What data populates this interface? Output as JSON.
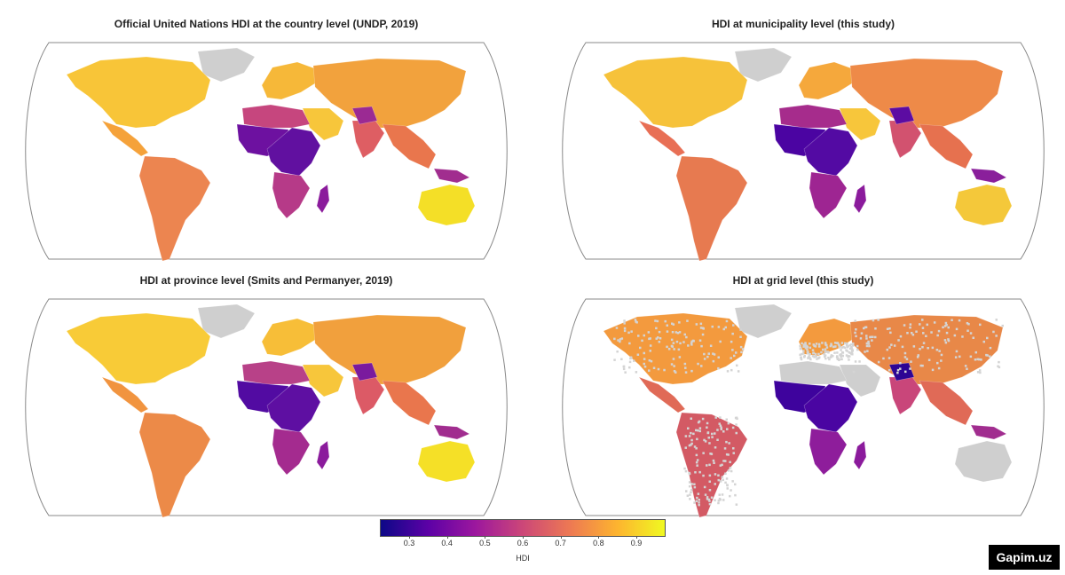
{
  "panels": [
    {
      "title": "Official United Nations HDI at the country level (UNDP, 2019)"
    },
    {
      "title": "HDI at municipality level (this study)"
    },
    {
      "title": "HDI at province level (Smits and Permanyer, 2019)"
    },
    {
      "title": "HDI at grid level (this study)"
    }
  ],
  "legend": {
    "label": "HDI",
    "ticks": [
      "0.3",
      "0.4",
      "0.5",
      "0.6",
      "0.7",
      "0.8",
      "0.9"
    ],
    "tick_values": [
      0.3,
      0.4,
      0.5,
      0.6,
      0.7,
      0.8,
      0.9
    ],
    "range": [
      0.225,
      0.975
    ],
    "colors": [
      "#0d0887",
      "#5c01a6",
      "#9c179e",
      "#cc4778",
      "#ed7953",
      "#fdb42f",
      "#f0f921"
    ]
  },
  "region_colors": {
    "panel1": {
      "north_america": "#f8c538",
      "central_america": "#f5a23a",
      "south_america": "#ec8550",
      "greenland": "#cfcfcf",
      "europe": "#f6b839",
      "russia_asia": "#f2a23d",
      "middle_east": "#f7c63b",
      "africa_north": "#c6467e",
      "africa_west": "#6d11a0",
      "africa_central": "#6110a0",
      "africa_south": "#b63a88",
      "madagascar": "#8b1b9c",
      "india": "#de5e63",
      "south_asia_hotspot": "#9b2a93",
      "se_asia": "#e9764d",
      "australia": "#f4df27",
      "new_guinea": "#a12d8f"
    },
    "panel2": {
      "north_america": "#f6c23a",
      "central_america": "#e86f55",
      "south_america": "#e77a50",
      "greenland": "#cfcfcf",
      "europe": "#f5a83c",
      "russia_asia": "#ee8a48",
      "middle_east": "#f7c63b",
      "africa_north": "#a62c8c",
      "africa_west": "#4b04a2",
      "africa_central": "#530aa3",
      "africa_south": "#9e2592",
      "madagascar": "#8b1b9c",
      "india": "#d2526f",
      "south_asia_hotspot": "#5c0ca2",
      "se_asia": "#e6714f",
      "australia": "#f4c83a",
      "new_guinea": "#8a1f9b"
    },
    "panel3": {
      "north_america": "#f8cb37",
      "central_america": "#f1943f",
      "south_america": "#ec8a48",
      "greenland": "#cfcfcf",
      "europe": "#f7be38",
      "russia_asia": "#f1a03d",
      "middle_east": "#f7c63b",
      "africa_north": "#b84188",
      "africa_west": "#520ba2",
      "africa_central": "#5e0fa2",
      "africa_south": "#a42b8f",
      "madagascar": "#8b1b9c",
      "india": "#dc5a66",
      "south_asia_hotspot": "#7a1a9e",
      "se_asia": "#e9764d",
      "australia": "#f5e027",
      "new_guinea": "#a12d8f"
    },
    "panel4": {
      "north_america": "#f39a3e",
      "central_america": "#e06a57",
      "south_america": "#d35a64",
      "greenland": "#cfcfcf",
      "europe": "#f39a3e",
      "russia_asia": "#e88848",
      "middle_east": "#cfcfcf",
      "africa_north": "#cfcfcf",
      "africa_west": "#3e039d",
      "africa_central": "#4a05a2",
      "africa_south": "#8e1d9b",
      "madagascar": "#8b1b9c",
      "india": "#c9467a",
      "south_asia_hotspot": "#2d0594",
      "se_asia": "#e06a57",
      "australia": "#cfcfcf",
      "new_guinea": "#a12d8f"
    }
  },
  "watermark": "Gapim.uz"
}
